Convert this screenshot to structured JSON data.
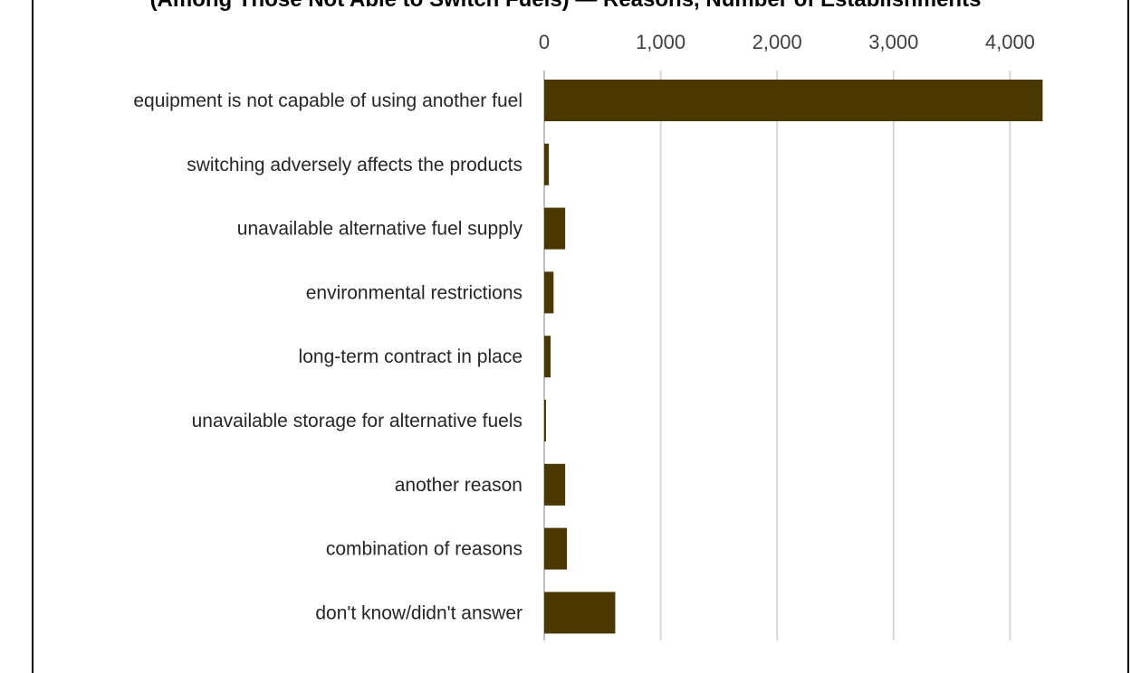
{
  "header": {
    "clipped_title": "(Among Those Not Able to Switch Fuels) — Reasons, Number of Establishments"
  },
  "chart_data": {
    "type": "bar",
    "orientation": "horizontal",
    "title": "",
    "xlabel": "",
    "ylabel": "",
    "xlim": [
      0,
      4300
    ],
    "grid": true,
    "legend": "none",
    "x_ticks": [
      0,
      1000,
      2000,
      3000,
      4000
    ],
    "x_tick_labels": [
      "0",
      "1,000",
      "2,000",
      "3,000",
      "4,000"
    ],
    "categories": [
      "equipment is not capable of using another fuel",
      "switching adversely affects the products",
      "unavailable alternative fuel supply",
      "environmental restrictions",
      "long-term contract in place",
      "unavailable storage for alternative fuels",
      "another reason",
      "combination of reasons",
      "don't know/didn't answer"
    ],
    "values": [
      4280,
      40,
      180,
      80,
      55,
      15,
      180,
      195,
      610
    ],
    "bar_color": "#4a3800",
    "grid_color": "#d9d9d9"
  }
}
